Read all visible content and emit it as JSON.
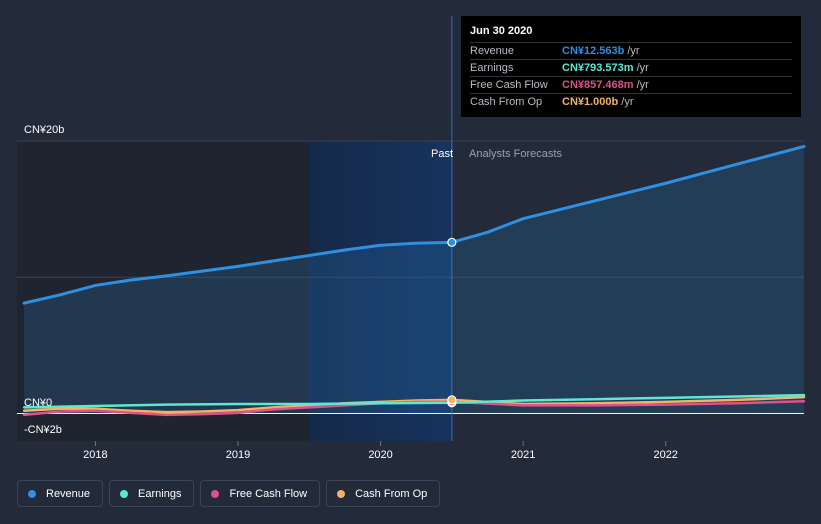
{
  "tooltip": {
    "date": "Jun 30 2020",
    "rows": [
      {
        "name": "Revenue",
        "value": "CN¥12.563b",
        "unit": "/yr",
        "color": "#2f8fe0"
      },
      {
        "name": "Earnings",
        "value": "CN¥793.573m",
        "unit": "/yr",
        "color": "#5ee8d4"
      },
      {
        "name": "Free Cash Flow",
        "value": "CN¥857.468m",
        "unit": "/yr",
        "color": "#e0508a"
      },
      {
        "name": "Cash From Op",
        "value": "CN¥1.000b",
        "unit": "/yr",
        "color": "#f2b366"
      }
    ]
  },
  "legend": [
    {
      "label": "Revenue",
      "color": "#2f8fe0"
    },
    {
      "label": "Earnings",
      "color": "#5ee8d4"
    },
    {
      "label": "Free Cash Flow",
      "color": "#e0508a"
    },
    {
      "label": "Cash From Op",
      "color": "#f2b366"
    }
  ],
  "chart_data": {
    "type": "line",
    "title": "",
    "xlabel": "",
    "ylabel": "",
    "ylim": [
      -2,
      20
    ],
    "y_labels": {
      "top": "CN¥20b",
      "zero": "CN¥0",
      "bottom": "-CN¥2b"
    },
    "x_ticks": [
      {
        "label": "2018",
        "x": 2018.0
      },
      {
        "label": "2019",
        "x": 2019.0
      },
      {
        "label": "2020",
        "x": 2020.0
      },
      {
        "label": "2021",
        "x": 2021.0
      },
      {
        "label": "2022",
        "x": 2022.0
      }
    ],
    "xlim": [
      2017.45,
      2022.97
    ],
    "past_label": "Past",
    "forecast_label": "Analysts Forecasts",
    "past_end": 2020.5,
    "shade_start": 2019.5,
    "highlight_x": 2020.5,
    "series": [
      {
        "name": "Revenue",
        "color": "#2f8fe0",
        "fill": true,
        "points": [
          [
            2017.5,
            8.1
          ],
          [
            2017.75,
            8.7
          ],
          [
            2018.0,
            9.4
          ],
          [
            2018.25,
            9.8
          ],
          [
            2018.5,
            10.1
          ],
          [
            2018.75,
            10.45
          ],
          [
            2019.0,
            10.8
          ],
          [
            2019.25,
            11.2
          ],
          [
            2019.5,
            11.6
          ],
          [
            2019.75,
            12.0
          ],
          [
            2020.0,
            12.35
          ],
          [
            2020.25,
            12.5
          ],
          [
            2020.5,
            12.563
          ],
          [
            2020.75,
            13.3
          ],
          [
            2021.0,
            14.3
          ],
          [
            2021.5,
            15.6
          ],
          [
            2022.0,
            16.9
          ],
          [
            2022.5,
            18.3
          ],
          [
            2022.97,
            19.6
          ]
        ]
      },
      {
        "name": "Earnings",
        "color": "#5ee8d4",
        "fill": false,
        "points": [
          [
            2017.5,
            0.45
          ],
          [
            2018.0,
            0.55
          ],
          [
            2018.5,
            0.65
          ],
          [
            2019.0,
            0.7
          ],
          [
            2019.5,
            0.7
          ],
          [
            2020.0,
            0.75
          ],
          [
            2020.5,
            0.79
          ],
          [
            2021.0,
            0.95
          ],
          [
            2021.5,
            1.05
          ],
          [
            2022.0,
            1.15
          ],
          [
            2022.5,
            1.25
          ],
          [
            2022.97,
            1.35
          ]
        ]
      },
      {
        "name": "Free Cash Flow",
        "color": "#e0508a",
        "fill": false,
        "points": [
          [
            2017.5,
            -0.1
          ],
          [
            2017.75,
            0.15
          ],
          [
            2018.0,
            0.2
          ],
          [
            2018.25,
            0.05
          ],
          [
            2018.5,
            -0.1
          ],
          [
            2018.75,
            -0.05
          ],
          [
            2019.0,
            0.05
          ],
          [
            2019.25,
            0.3
          ],
          [
            2019.5,
            0.45
          ],
          [
            2019.75,
            0.6
          ],
          [
            2020.0,
            0.75
          ],
          [
            2020.25,
            0.85
          ],
          [
            2020.5,
            0.857
          ],
          [
            2021.0,
            0.6
          ],
          [
            2021.5,
            0.6
          ],
          [
            2022.0,
            0.65
          ],
          [
            2022.5,
            0.75
          ],
          [
            2022.97,
            0.9
          ]
        ]
      },
      {
        "name": "Cash From Op",
        "color": "#f2b366",
        "fill": false,
        "points": [
          [
            2017.5,
            0.2
          ],
          [
            2017.75,
            0.35
          ],
          [
            2018.0,
            0.35
          ],
          [
            2018.25,
            0.2
          ],
          [
            2018.5,
            0.1
          ],
          [
            2018.75,
            0.15
          ],
          [
            2019.0,
            0.25
          ],
          [
            2019.25,
            0.45
          ],
          [
            2019.5,
            0.6
          ],
          [
            2019.75,
            0.75
          ],
          [
            2020.0,
            0.85
          ],
          [
            2020.25,
            0.95
          ],
          [
            2020.5,
            1.0
          ],
          [
            2021.0,
            0.7
          ],
          [
            2021.5,
            0.75
          ],
          [
            2022.0,
            0.85
          ],
          [
            2022.5,
            1.0
          ],
          [
            2022.97,
            1.2
          ]
        ]
      }
    ]
  }
}
